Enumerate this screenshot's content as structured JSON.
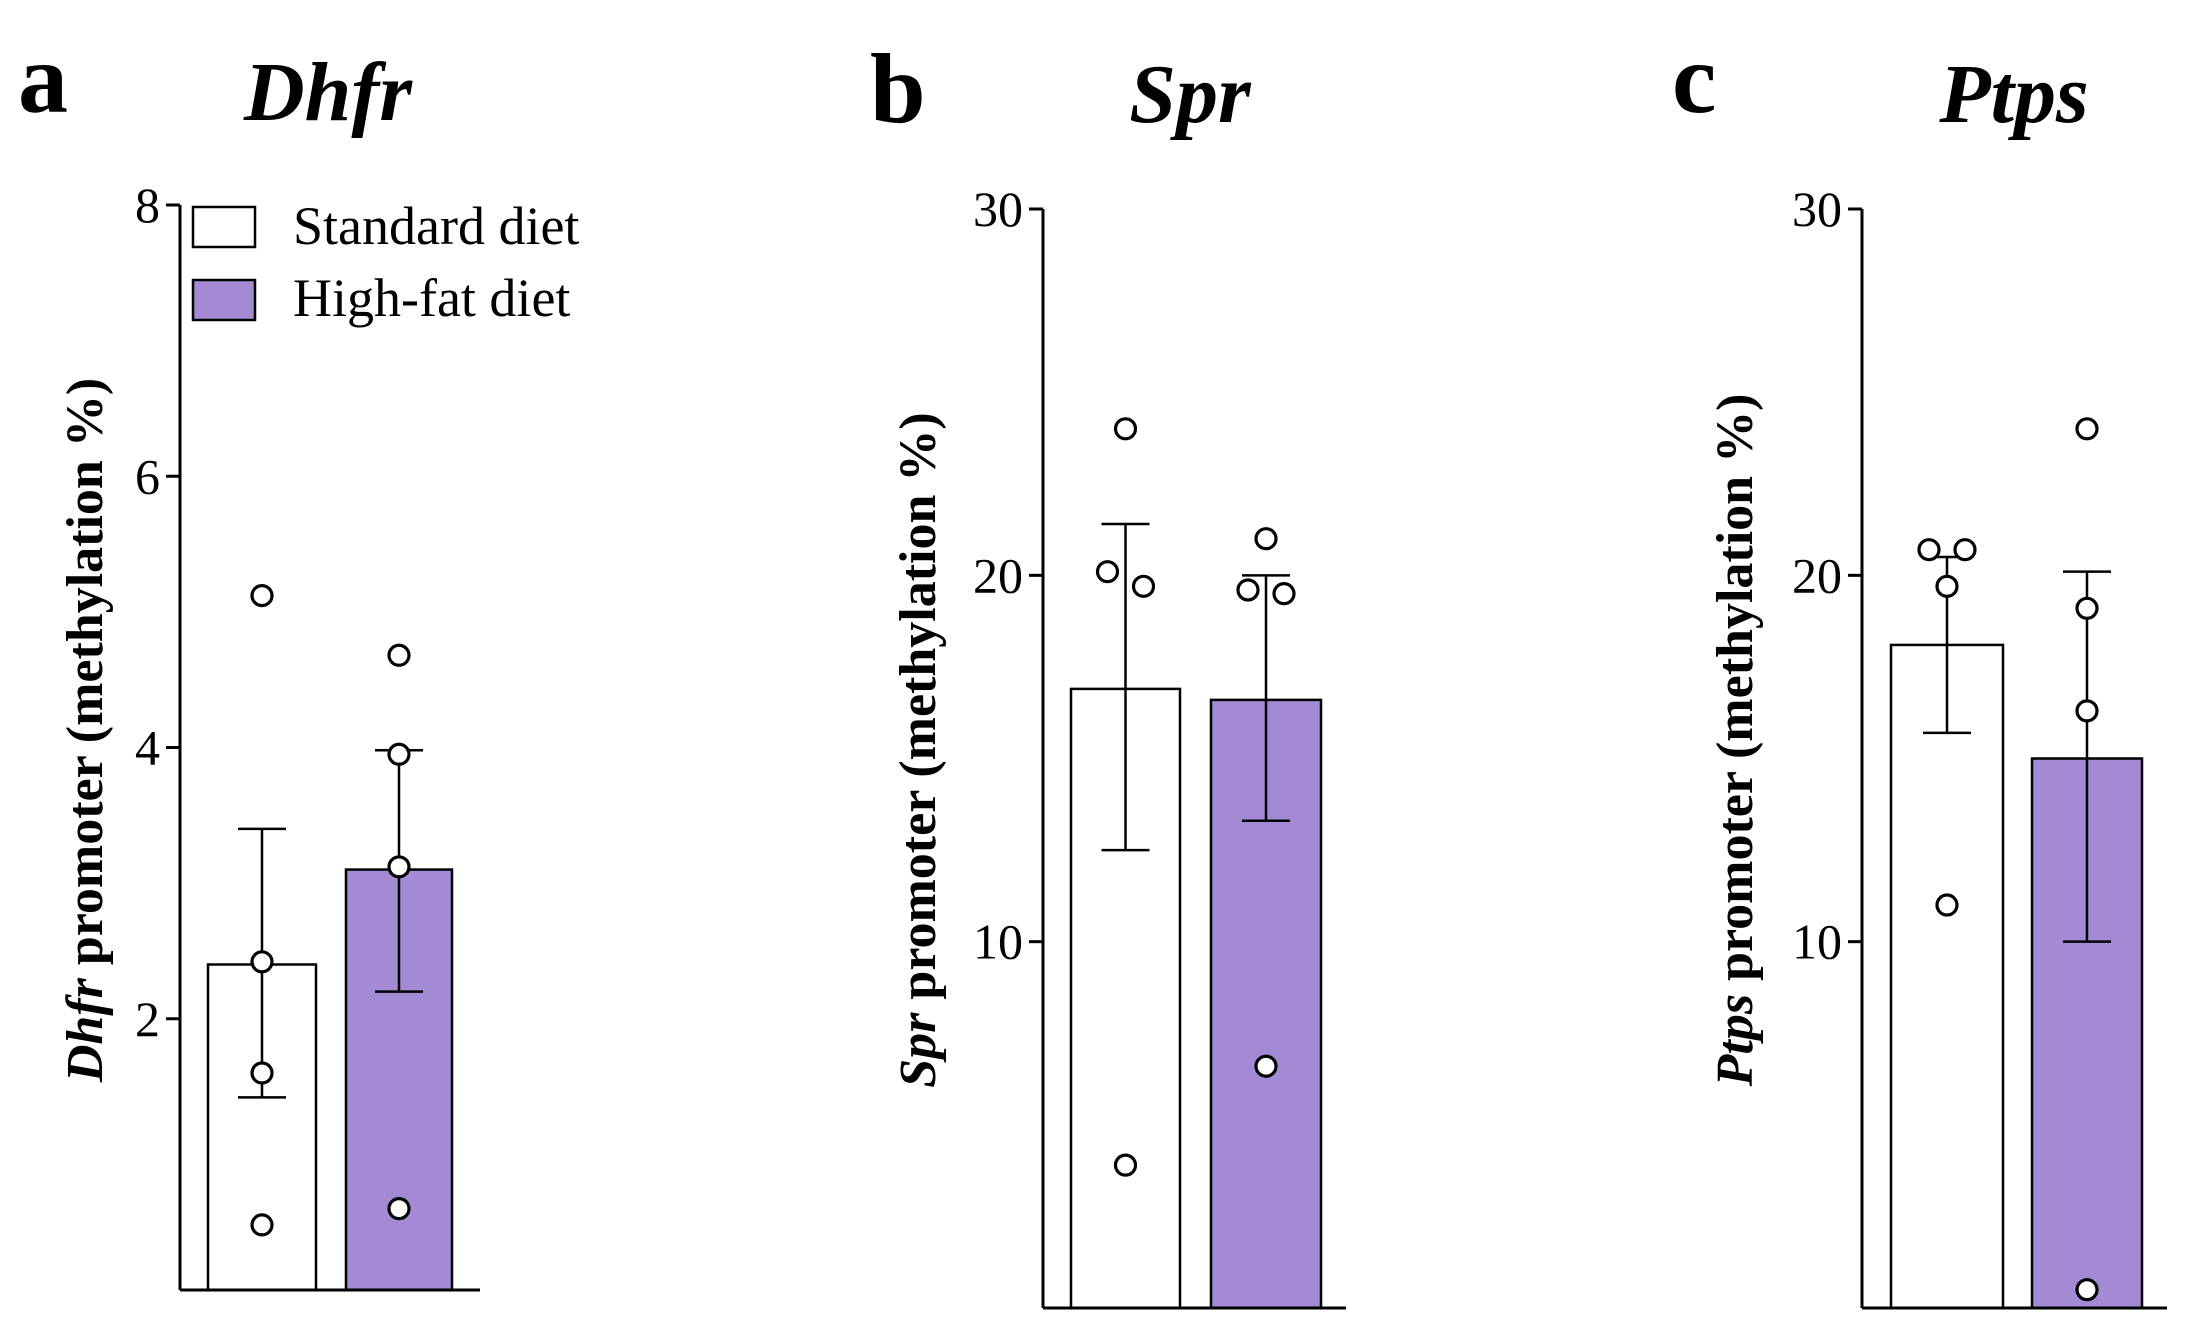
{
  "legend": {
    "standard_label": "Standard diet",
    "highfat_label": "High-fat diet"
  },
  "colors": {
    "standard_fill": "#ffffff",
    "highfat_fill": "#a48ad4",
    "stroke": "#000000"
  },
  "chart_data": [
    {
      "type": "bar",
      "panel_letter": "a",
      "title": "Dhfr",
      "ylabel_gene": "Dhfr",
      "ylabel_rest": " promoter (methylation %)",
      "categories": [
        "Standard diet",
        "High-fat diet"
      ],
      "ylim": [
        0,
        8
      ],
      "yticks": [
        2,
        4,
        6,
        8
      ],
      "series": [
        {
          "name": "Standard diet",
          "mean": 2.4,
          "err_low": 1.42,
          "err_high": 3.4,
          "points": [
            5.12,
            2.42,
            1.6,
            0.48
          ]
        },
        {
          "name": "High-fat diet",
          "mean": 3.1,
          "err_low": 2.2,
          "err_high": 3.98,
          "points": [
            4.68,
            3.95,
            3.12,
            0.6
          ]
        }
      ]
    },
    {
      "type": "bar",
      "panel_letter": "b",
      "title": "Spr",
      "ylabel_gene": "Spr",
      "ylabel_rest": " promoter (methylation %)",
      "categories": [
        "Standard diet",
        "High-fat diet"
      ],
      "ylim": [
        0,
        30
      ],
      "yticks": [
        10,
        20,
        30
      ],
      "series": [
        {
          "name": "Standard diet",
          "mean": 16.9,
          "err_low": 12.5,
          "err_high": 21.4,
          "points": [
            24.0,
            20.1,
            19.7,
            3.9
          ]
        },
        {
          "name": "High-fat diet",
          "mean": 16.6,
          "err_low": 13.3,
          "err_high": 20.0,
          "points": [
            21.0,
            19.6,
            19.5,
            6.6
          ]
        }
      ]
    },
    {
      "type": "bar",
      "panel_letter": "c",
      "title": "Ptps",
      "ylabel_gene": "Ptps",
      "ylabel_rest": " promoter (methylation %)",
      "categories": [
        "Standard diet",
        "High-fat diet"
      ],
      "ylim": [
        0,
        30
      ],
      "yticks": [
        10,
        20,
        30
      ],
      "series": [
        {
          "name": "Standard diet",
          "mean": 18.1,
          "err_low": 15.7,
          "err_high": 20.5,
          "points": [
            20.7,
            20.7,
            19.7,
            11.0
          ]
        },
        {
          "name": "High-fat diet",
          "mean": 15.0,
          "err_low": 10.0,
          "err_high": 20.1,
          "points": [
            24.0,
            19.1,
            16.3,
            0.5
          ]
        }
      ]
    }
  ]
}
